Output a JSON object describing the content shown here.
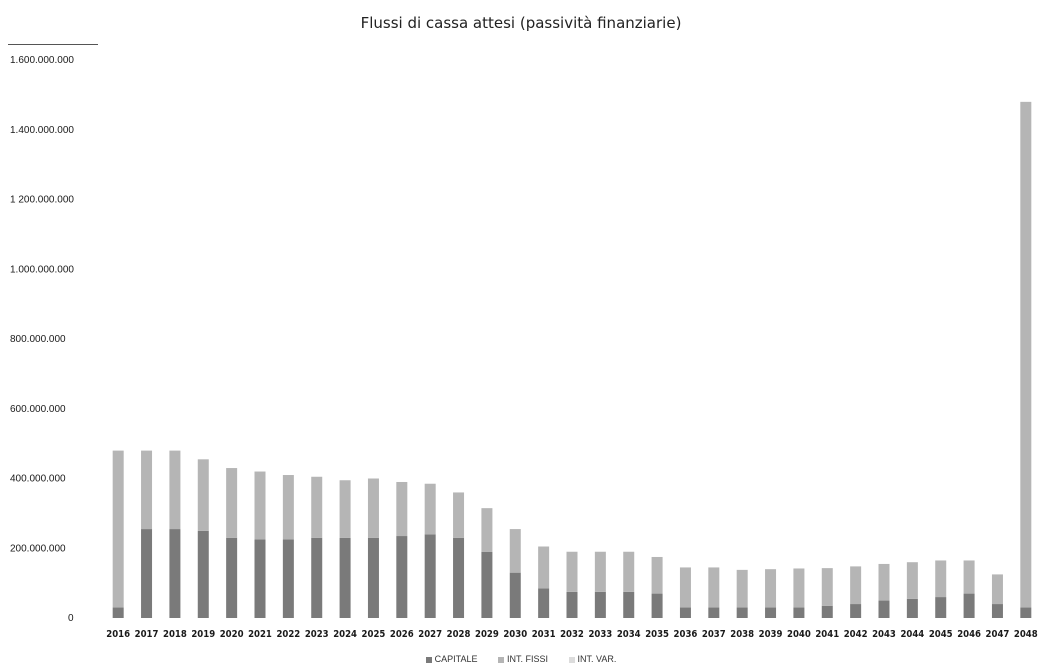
{
  "chart_data": {
    "type": "bar",
    "stacked": true,
    "title": "Flussi di cassa attesi (passività finanziarie)",
    "xlabel": "",
    "ylabel": "",
    "ylim": [
      0,
      1600000000
    ],
    "yticks": [
      {
        "value": 0,
        "label": "0"
      },
      {
        "value": 200000000,
        "label": "200.000.000"
      },
      {
        "value": 400000000,
        "label": "400.000.000"
      },
      {
        "value": 600000000,
        "label": "600.000.000"
      },
      {
        "value": 800000000,
        "label": "800.000.000"
      },
      {
        "value": 1000000000,
        "label": "1.000.000.000"
      },
      {
        "value": 1200000000,
        "label": "1 200.000.000"
      },
      {
        "value": 1400000000,
        "label": "1.400.000.000"
      },
      {
        "value": 1600000000,
        "label": "1.600.000.000"
      }
    ],
    "categories": [
      "2016",
      "2017",
      "2018",
      "2019",
      "2020",
      "2021",
      "2022",
      "2023",
      "2024",
      "2025",
      "2026",
      "2027",
      "2028",
      "2029",
      "2030",
      "2031",
      "2032",
      "2033",
      "2034",
      "2035",
      "2036",
      "2037",
      "2038",
      "2039",
      "2040",
      "2041",
      "2042",
      "2043",
      "2044",
      "2045",
      "2046",
      "2047",
      "2048"
    ],
    "series": [
      {
        "name": "CAPITALE",
        "color": "#7a7a7a",
        "values": [
          30000000,
          255000000,
          255000000,
          250000000,
          230000000,
          225000000,
          225000000,
          230000000,
          230000000,
          230000000,
          235000000,
          240000000,
          230000000,
          190000000,
          130000000,
          85000000,
          75000000,
          75000000,
          75000000,
          70000000,
          30000000,
          30000000,
          30000000,
          30000000,
          30000000,
          35000000,
          40000000,
          50000000,
          55000000,
          60000000,
          70000000,
          40000000,
          30000000
        ]
      },
      {
        "name": "INT. FISSI",
        "color": "#b5b5b5",
        "values": [
          450000000,
          225000000,
          225000000,
          205000000,
          200000000,
          195000000,
          185000000,
          175000000,
          165000000,
          170000000,
          155000000,
          145000000,
          130000000,
          125000000,
          125000000,
          120000000,
          115000000,
          115000000,
          115000000,
          105000000,
          115000000,
          115000000,
          108000000,
          110000000,
          112000000,
          108000000,
          108000000,
          105000000,
          105000000,
          105000000,
          95000000,
          85000000,
          1450000000
        ]
      },
      {
        "name": "INT. VAR.",
        "color": "#dcdcdc",
        "values": [
          0,
          0,
          0,
          0,
          0,
          0,
          0,
          0,
          0,
          0,
          0,
          0,
          0,
          0,
          0,
          0,
          0,
          0,
          0,
          0,
          0,
          0,
          0,
          0,
          0,
          0,
          0,
          0,
          0,
          0,
          0,
          0,
          0
        ]
      }
    ]
  }
}
